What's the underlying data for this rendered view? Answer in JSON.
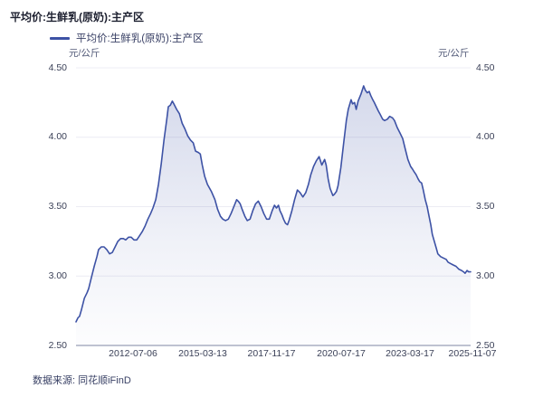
{
  "header": {
    "title": "平均价:生鲜乳(原奶):主产区"
  },
  "legend": {
    "label": "平均价:生鲜乳(原奶):主产区",
    "marker_color": "#3D52A5"
  },
  "footer": {
    "source": "数据来源: 同花顺iFinD"
  },
  "colors": {
    "line": "#3D52A5",
    "grid": "#ECECF4",
    "axis": "#A9AEC2",
    "area_top": "rgba(61,82,165,0.22)",
    "area_mid": "rgba(61,82,165,0.08)",
    "area_bottom": "rgba(61,82,165,0.01)"
  },
  "chart_data": {
    "type": "area",
    "title": "平均价:生鲜乳(原奶):主产区",
    "series_name": "平均价:生鲜乳(原奶):主产区",
    "ylabel_left": "元/公斤",
    "ylabel_right": "元/公斤",
    "ylim": [
      2.5,
      4.5
    ],
    "grid": true,
    "legend_position": "top-left",
    "y_ticks": [
      {
        "label": "4.50",
        "value": 4.5
      },
      {
        "label": "4.00",
        "value": 4.0
      },
      {
        "label": "3.50",
        "value": 3.5
      },
      {
        "label": "3.00",
        "value": 3.0
      },
      {
        "label": "2.50",
        "value": 2.5
      }
    ],
    "x_ticks": [
      {
        "label": "2012-07-06",
        "f": 0.1445
      },
      {
        "label": "2015-03-13",
        "f": 0.3211
      },
      {
        "label": "2017-11-17",
        "f": 0.4954
      },
      {
        "label": "2020-07-17",
        "f": 0.672
      },
      {
        "label": "2023-03-17",
        "f": 0.8463
      },
      {
        "label": "2025-11-07",
        "f": 1.0046
      }
    ],
    "points_format": "[fraction_of_x_axis (2010-05 .. 2025-11-07), price_yuan_per_kg]",
    "points": [
      [
        0.0,
        2.67
      ],
      [
        0.005,
        2.7
      ],
      [
        0.009,
        2.71
      ],
      [
        0.014,
        2.76
      ],
      [
        0.021,
        2.84
      ],
      [
        0.028,
        2.88
      ],
      [
        0.032,
        2.91
      ],
      [
        0.039,
        2.99
      ],
      [
        0.046,
        3.07
      ],
      [
        0.053,
        3.14
      ],
      [
        0.057,
        3.19
      ],
      [
        0.064,
        3.21
      ],
      [
        0.071,
        3.21
      ],
      [
        0.078,
        3.19
      ],
      [
        0.085,
        3.16
      ],
      [
        0.092,
        3.17
      ],
      [
        0.099,
        3.21
      ],
      [
        0.106,
        3.25
      ],
      [
        0.113,
        3.27
      ],
      [
        0.12,
        3.27
      ],
      [
        0.126,
        3.26
      ],
      [
        0.133,
        3.28
      ],
      [
        0.14,
        3.28
      ],
      [
        0.147,
        3.26
      ],
      [
        0.154,
        3.26
      ],
      [
        0.161,
        3.29
      ],
      [
        0.168,
        3.32
      ],
      [
        0.175,
        3.36
      ],
      [
        0.182,
        3.41
      ],
      [
        0.189,
        3.45
      ],
      [
        0.195,
        3.49
      ],
      [
        0.202,
        3.55
      ],
      [
        0.209,
        3.66
      ],
      [
        0.216,
        3.81
      ],
      [
        0.223,
        3.98
      ],
      [
        0.23,
        4.13
      ],
      [
        0.234,
        4.22
      ],
      [
        0.239,
        4.23
      ],
      [
        0.244,
        4.26
      ],
      [
        0.248,
        4.24
      ],
      [
        0.255,
        4.2
      ],
      [
        0.262,
        4.17
      ],
      [
        0.269,
        4.1
      ],
      [
        0.276,
        4.06
      ],
      [
        0.283,
        4.01
      ],
      [
        0.29,
        3.98
      ],
      [
        0.297,
        3.96
      ],
      [
        0.303,
        3.9
      ],
      [
        0.31,
        3.89
      ],
      [
        0.315,
        3.88
      ],
      [
        0.32,
        3.8
      ],
      [
        0.326,
        3.72
      ],
      [
        0.333,
        3.66
      ],
      [
        0.343,
        3.61
      ],
      [
        0.352,
        3.55
      ],
      [
        0.359,
        3.48
      ],
      [
        0.366,
        3.43
      ],
      [
        0.372,
        3.41
      ],
      [
        0.379,
        3.4
      ],
      [
        0.386,
        3.41
      ],
      [
        0.393,
        3.45
      ],
      [
        0.4,
        3.5
      ],
      [
        0.407,
        3.55
      ],
      [
        0.411,
        3.54
      ],
      [
        0.416,
        3.52
      ],
      [
        0.421,
        3.48
      ],
      [
        0.428,
        3.43
      ],
      [
        0.434,
        3.4
      ],
      [
        0.441,
        3.41
      ],
      [
        0.448,
        3.47
      ],
      [
        0.455,
        3.52
      ],
      [
        0.462,
        3.54
      ],
      [
        0.469,
        3.5
      ],
      [
        0.476,
        3.45
      ],
      [
        0.483,
        3.41
      ],
      [
        0.49,
        3.41
      ],
      [
        0.497,
        3.47
      ],
      [
        0.503,
        3.51
      ],
      [
        0.508,
        3.49
      ],
      [
        0.513,
        3.51
      ],
      [
        0.517,
        3.47
      ],
      [
        0.522,
        3.44
      ],
      [
        0.526,
        3.41
      ],
      [
        0.531,
        3.38
      ],
      [
        0.536,
        3.37
      ],
      [
        0.54,
        3.4
      ],
      [
        0.547,
        3.47
      ],
      [
        0.554,
        3.55
      ],
      [
        0.561,
        3.62
      ],
      [
        0.568,
        3.6
      ],
      [
        0.575,
        3.57
      ],
      [
        0.582,
        3.6
      ],
      [
        0.589,
        3.66
      ],
      [
        0.595,
        3.73
      ],
      [
        0.602,
        3.79
      ],
      [
        0.609,
        3.83
      ],
      [
        0.616,
        3.86
      ],
      [
        0.623,
        3.8
      ],
      [
        0.63,
        3.84
      ],
      [
        0.634,
        3.8
      ],
      [
        0.639,
        3.7
      ],
      [
        0.644,
        3.63
      ],
      [
        0.651,
        3.58
      ],
      [
        0.655,
        3.59
      ],
      [
        0.66,
        3.61
      ],
      [
        0.664,
        3.65
      ],
      [
        0.671,
        3.78
      ],
      [
        0.678,
        3.95
      ],
      [
        0.685,
        4.12
      ],
      [
        0.69,
        4.2
      ],
      [
        0.697,
        4.27
      ],
      [
        0.701,
        4.24
      ],
      [
        0.706,
        4.25
      ],
      [
        0.71,
        4.2
      ],
      [
        0.715,
        4.26
      ],
      [
        0.722,
        4.31
      ],
      [
        0.729,
        4.37
      ],
      [
        0.733,
        4.34
      ],
      [
        0.738,
        4.32
      ],
      [
        0.743,
        4.33
      ],
      [
        0.747,
        4.3
      ],
      [
        0.752,
        4.27
      ],
      [
        0.756,
        4.25
      ],
      [
        0.761,
        4.22
      ],
      [
        0.766,
        4.19
      ],
      [
        0.77,
        4.17
      ],
      [
        0.777,
        4.13
      ],
      [
        0.782,
        4.12
      ],
      [
        0.789,
        4.13
      ],
      [
        0.795,
        4.15
      ],
      [
        0.802,
        4.14
      ],
      [
        0.807,
        4.12
      ],
      [
        0.814,
        4.07
      ],
      [
        0.821,
        4.03
      ],
      [
        0.828,
        3.99
      ],
      [
        0.834,
        3.92
      ],
      [
        0.841,
        3.84
      ],
      [
        0.848,
        3.79
      ],
      [
        0.853,
        3.77
      ],
      [
        0.857,
        3.75
      ],
      [
        0.862,
        3.73
      ],
      [
        0.867,
        3.7
      ],
      [
        0.871,
        3.68
      ],
      [
        0.876,
        3.67
      ],
      [
        0.88,
        3.62
      ],
      [
        0.885,
        3.55
      ],
      [
        0.89,
        3.5
      ],
      [
        0.894,
        3.44
      ],
      [
        0.899,
        3.37
      ],
      [
        0.903,
        3.3
      ],
      [
        0.908,
        3.25
      ],
      [
        0.913,
        3.2
      ],
      [
        0.917,
        3.16
      ],
      [
        0.924,
        3.14
      ],
      [
        0.931,
        3.13
      ],
      [
        0.938,
        3.12
      ],
      [
        0.943,
        3.1
      ],
      [
        0.949,
        3.09
      ],
      [
        0.956,
        3.08
      ],
      [
        0.963,
        3.07
      ],
      [
        0.97,
        3.05
      ],
      [
        0.977,
        3.04
      ],
      [
        0.982,
        3.03
      ],
      [
        0.986,
        3.02
      ],
      [
        0.991,
        3.04
      ],
      [
        0.995,
        3.03
      ],
      [
        1.0,
        3.03
      ]
    ]
  }
}
